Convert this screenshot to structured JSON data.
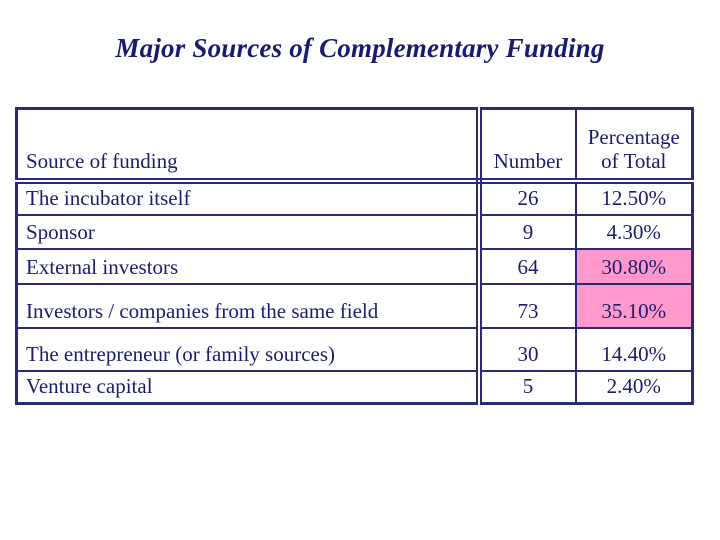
{
  "title": {
    "text": "Major Sources of Complementary Funding",
    "color": "#1a1a70"
  },
  "table": {
    "border_color": "#2a2a78",
    "text_color": "#1c1c6e",
    "highlight_color": "#ff99cc",
    "columns": [
      {
        "key": "source",
        "label": "Source of funding"
      },
      {
        "key": "number",
        "label": "Number"
      },
      {
        "key": "percentage",
        "label": "Percentage of Total"
      }
    ],
    "rows": [
      {
        "source": "The incubator itself",
        "number": "26",
        "percentage": "12.50%",
        "highlight": false
      },
      {
        "source": "Sponsor",
        "number": "9",
        "percentage": "4.30%",
        "highlight": false
      },
      {
        "source": "External investors",
        "number": "64",
        "percentage": "30.80%",
        "highlight": true
      },
      {
        "source": "Investors / companies from the same field",
        "number": "73",
        "percentage": "35.10%",
        "highlight": true
      },
      {
        "source": "The entrepreneur (or family sources)",
        "number": "30",
        "percentage": "14.40%",
        "highlight": false
      },
      {
        "source": "Venture capital",
        "number": "5",
        "percentage": "2.40%",
        "highlight": false
      }
    ]
  }
}
